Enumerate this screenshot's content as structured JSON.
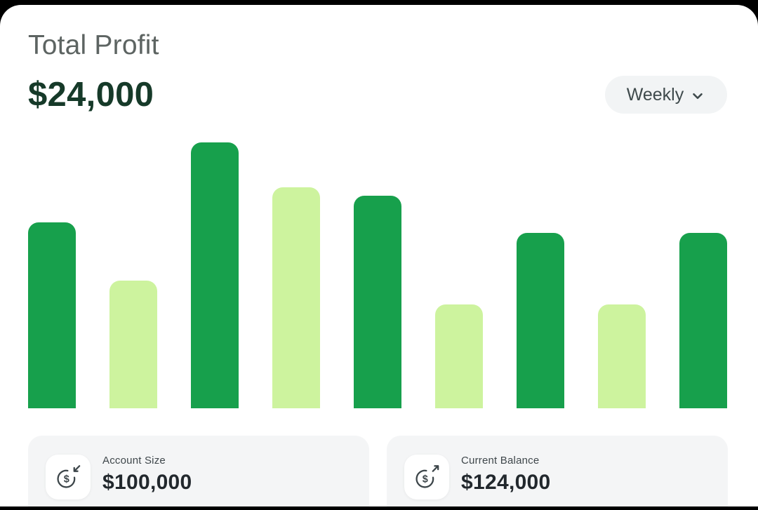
{
  "header": {
    "title": "Total Profit",
    "value": "$24,000",
    "period_selector": {
      "label": "Weekly",
      "icon": "chevron-down-icon"
    }
  },
  "chart_data": {
    "type": "bar",
    "title": "Total Profit",
    "categories": [
      "",
      "",
      "",
      "",
      "",
      "",
      "",
      "",
      ""
    ],
    "values": [
      70,
      48,
      100,
      83,
      80,
      39,
      66,
      39,
      66
    ],
    "ylim": [
      0,
      100
    ],
    "xlabel": "",
    "ylabel": "",
    "grid": false,
    "legend": false,
    "colors": {
      "dark": "#17a04c",
      "light": "#cdf39e"
    },
    "pattern": [
      "dark",
      "light"
    ],
    "note": "no axis or value labels shown; values are relative bar heights with tallest bar = 100"
  },
  "stats": [
    {
      "label": "Account Size",
      "value": "$100,000",
      "icon": "dollar-circle-arrow-in-icon"
    },
    {
      "label": "Current Balance",
      "value": "$124,000",
      "icon": "dollar-circle-arrow-out-icon"
    }
  ],
  "theme": {
    "page_background": "#000000",
    "card_background": "#ffffff",
    "title_color": "#5d6462",
    "profit_text_color": "#163a29",
    "pill_background": "#f2f4f5",
    "stat_card_background": "#f4f5f6",
    "icon_stroke": "#3c4549",
    "bar_dark_green": "#17a04c",
    "bar_light_green": "#cdf39e"
  }
}
